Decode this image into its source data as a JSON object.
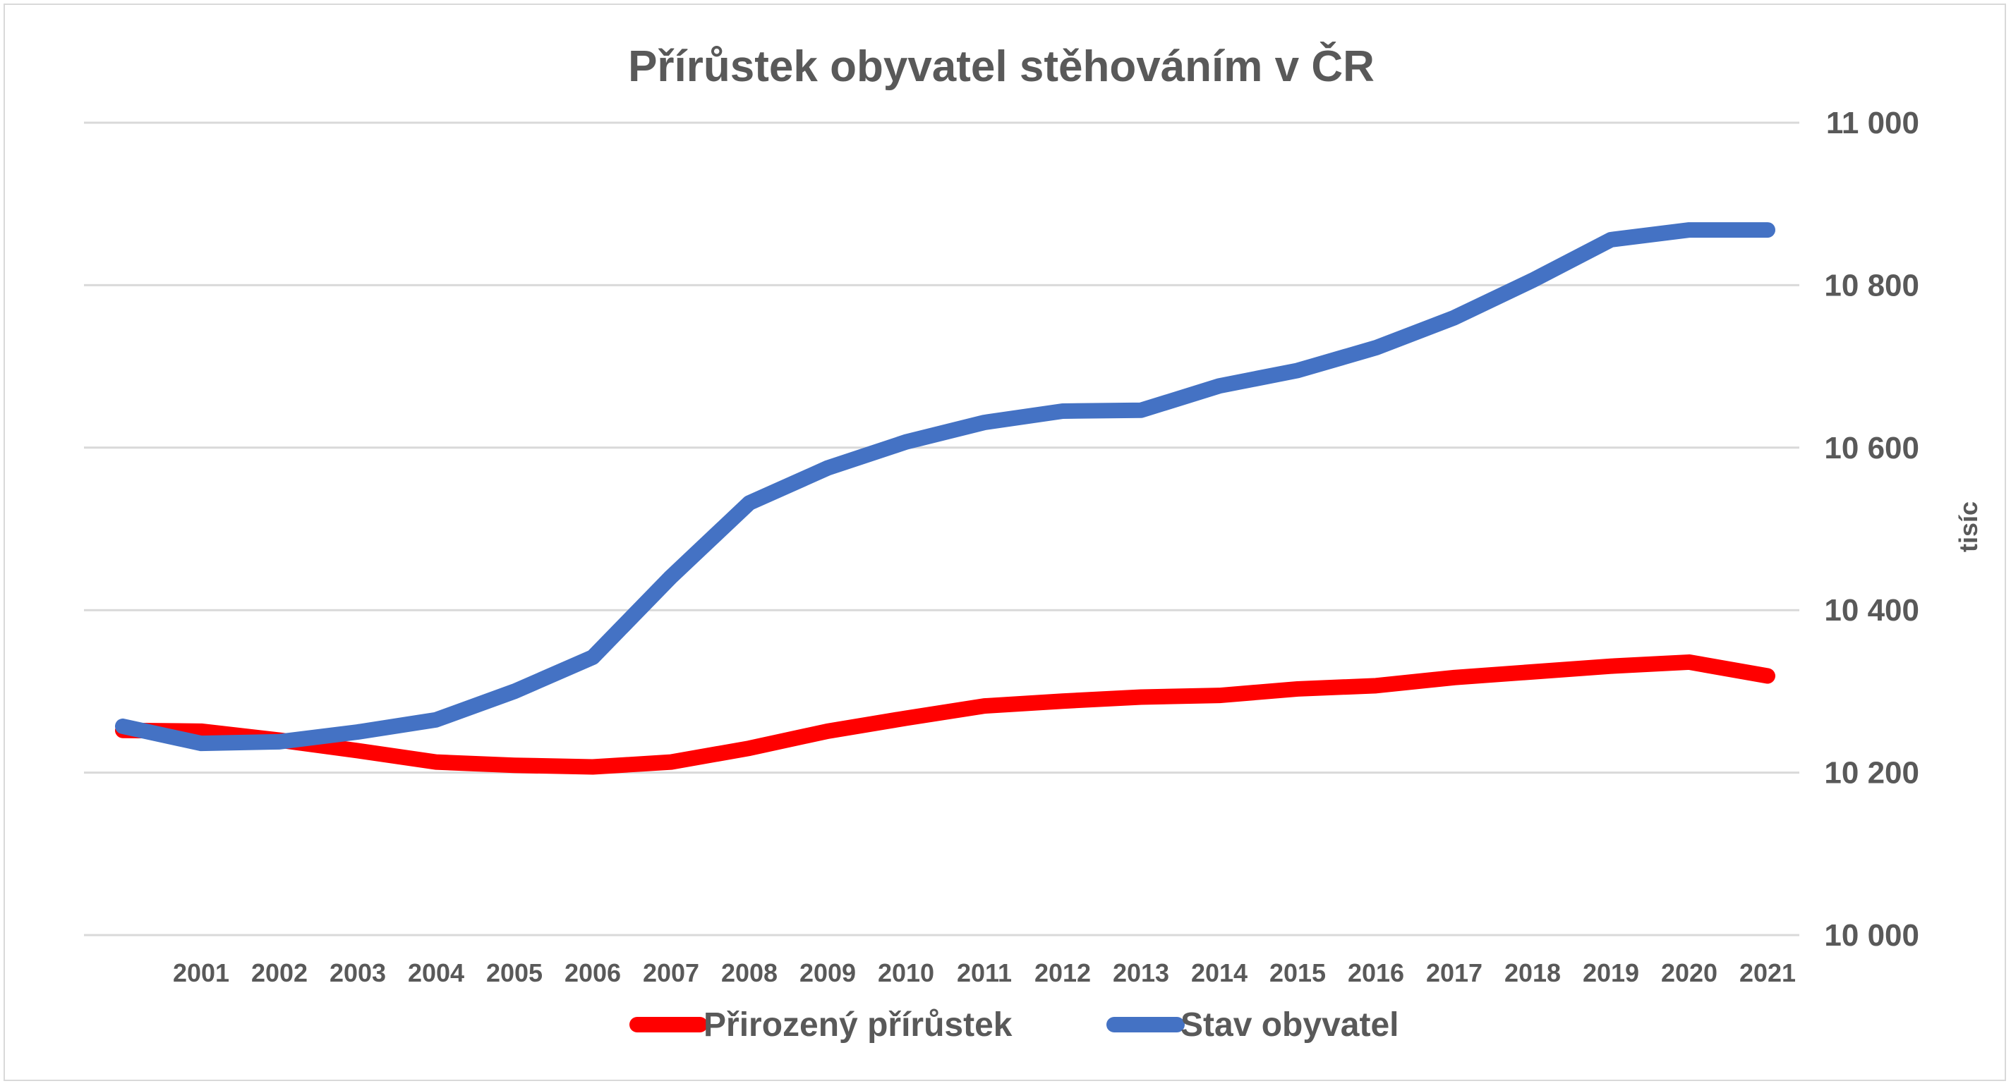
{
  "chart_data": {
    "type": "line",
    "title": "Přírůstek obyvatel stěhováním v ČR",
    "xlabel": "",
    "ylabel": "tisíc",
    "y_axis_side": "right",
    "ylim": [
      10000,
      11000
    ],
    "y_ticks": [
      10000,
      10200,
      10400,
      10600,
      10800,
      11000
    ],
    "y_tick_labels": [
      "10 000",
      "10 200",
      "10 400",
      "10 600",
      "10 800",
      "11 000"
    ],
    "x_tick_labels": [
      "2001",
      "2002",
      "2003",
      "2004",
      "2005",
      "2006",
      "2007",
      "2008",
      "2009",
      "2010",
      "2011",
      "2012",
      "2013",
      "2014",
      "2015",
      "2016",
      "2017",
      "2018",
      "2019",
      "2020",
      "2021"
    ],
    "x": [
      "",
      "2001",
      "2002",
      "2003",
      "2004",
      "2005",
      "2006",
      "2007",
      "2008",
      "2009",
      "2010",
      "2011",
      "2012",
      "2013",
      "2014",
      "2015",
      "2016",
      "2017",
      "2018",
      "2019",
      "2020",
      "2021"
    ],
    "grid": true,
    "legend": "bottom",
    "series": [
      {
        "name": "Přirozený přírůstek",
        "color": "#ff0000",
        "values": [
          10252,
          10251,
          10240,
          10227,
          10213,
          10209,
          10207,
          10213,
          10230,
          10251,
          10267,
          10282,
          10288,
          10293,
          10295,
          10303,
          10307,
          10317,
          10324,
          10331,
          10336,
          10319
        ]
      },
      {
        "name": "Stav obyvatel",
        "color": "#4472c4",
        "values": [
          10257,
          10236,
          10238,
          10250,
          10265,
          10300,
          10342,
          10441,
          10532,
          10575,
          10607,
          10631,
          10645,
          10646,
          10676,
          10695,
          10723,
          10760,
          10806,
          10856,
          10868,
          10868
        ]
      }
    ]
  }
}
